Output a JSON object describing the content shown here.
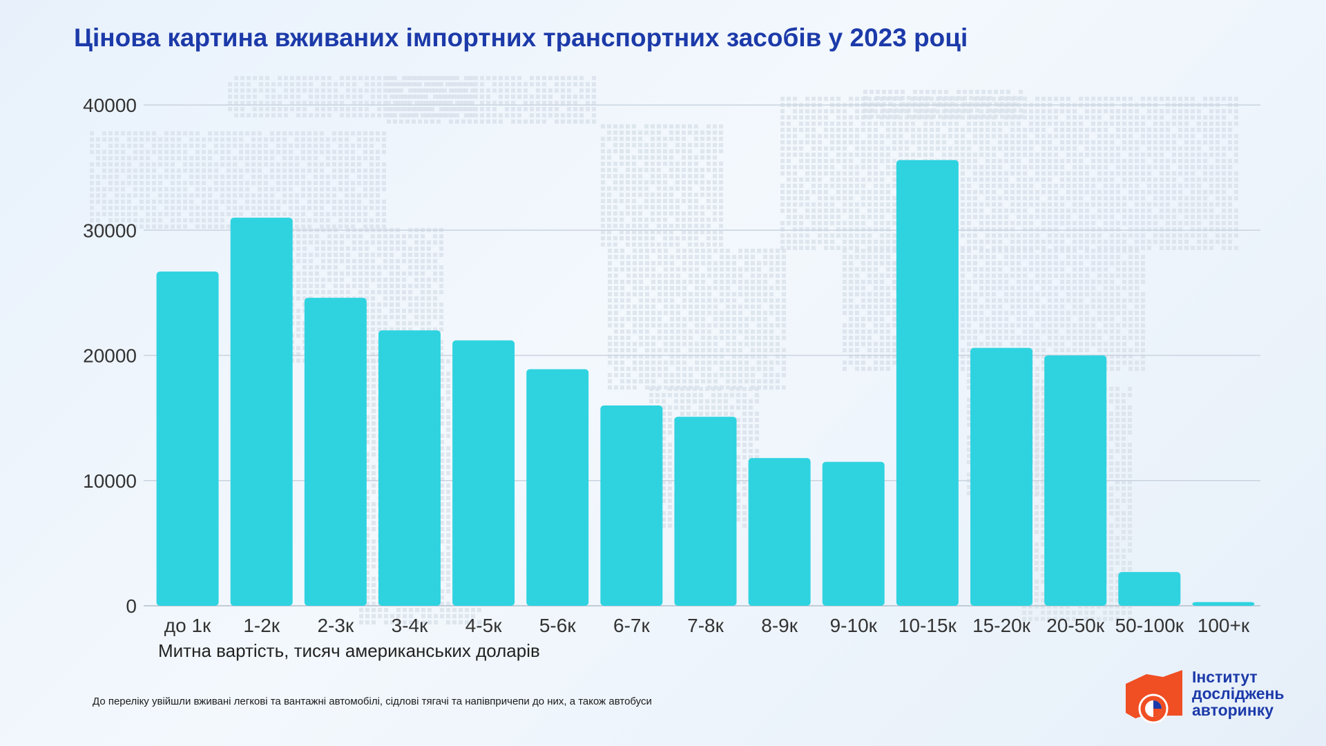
{
  "title": "Цінова картина вживаних імпортних транспортних засобів у 2023 році",
  "footnote": "До переліку увійшли вживані легкові та вантажні автомобілі, сідлові тягачі та напівпричепи до них, а також автобуси",
  "logo": {
    "line1": "Інститут",
    "line2": "досліджень",
    "line3": "авторинку"
  },
  "colors": {
    "bar": "#2fd3e0",
    "title": "#1c3aa9",
    "grid": "#c9d3de",
    "logo_orange": "#f04e23"
  },
  "chart_data": {
    "type": "bar",
    "title": "Цінова картина вживаних імпортних транспортних засобів у 2023 році",
    "xlabel": "Митна вартість, тисяч американських доларів",
    "ylabel": "",
    "ylim": [
      0,
      40000
    ],
    "yticks": [
      0,
      10000,
      20000,
      30000,
      40000
    ],
    "grid": true,
    "categories": [
      "до 1к",
      "1-2к",
      "2-3к",
      "3-4к",
      "4-5к",
      "5-6к",
      "6-7к",
      "7-8к",
      "8-9к",
      "9-10к",
      "10-15к",
      "15-20к",
      "20-50к",
      "50-100к",
      "100+к"
    ],
    "values": [
      26700,
      31000,
      24600,
      22000,
      21200,
      18900,
      16000,
      15100,
      11800,
      11500,
      35600,
      20600,
      20000,
      2700,
      300
    ]
  }
}
